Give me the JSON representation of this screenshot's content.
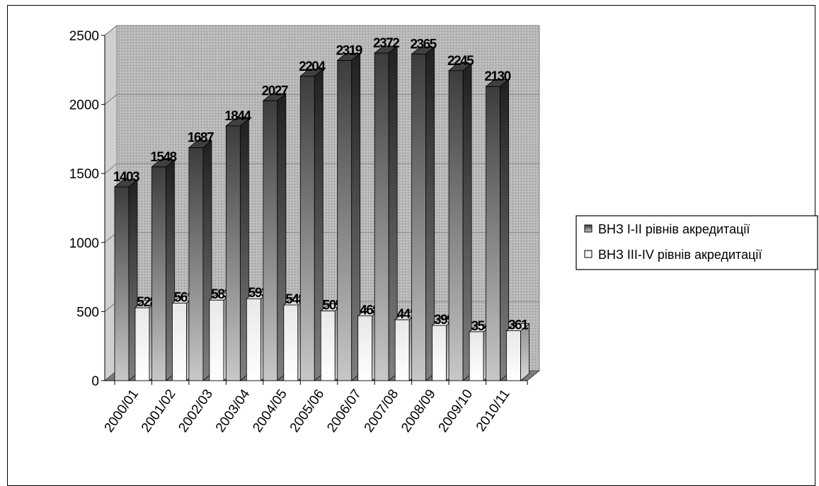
{
  "chart_data": {
    "type": "bar",
    "categories": [
      "2000/01",
      "2001/02",
      "2002/03",
      "2003/04",
      "2004/05",
      "2005/06",
      "2006/07",
      "2007/08",
      "2008/09",
      "2009/10",
      "2010/11"
    ],
    "series": [
      {
        "name": "ВНЗ I-II рівнів акредитації",
        "values": [
          1403,
          1548,
          1687,
          1844,
          2027,
          2204,
          2319,
          2372,
          2365,
          2245,
          2130
        ]
      },
      {
        "name": "ВНЗ III-IV рівнів акредитації",
        "values": [
          528,
          561,
          583,
          593,
          548,
          505,
          468,
          441,
          399,
          354,
          361
        ]
      }
    ],
    "ylim": [
      0,
      2500
    ],
    "yticks": [
      "0",
      "500",
      "1000",
      "1500",
      "2000",
      "2500"
    ],
    "grid": true,
    "legend_position": "right",
    "colors": {
      "series1": "#5a5a5a",
      "series2": "#f0f0f0",
      "wall": "#b4b4b4",
      "floor": "#7a7a7a"
    }
  }
}
